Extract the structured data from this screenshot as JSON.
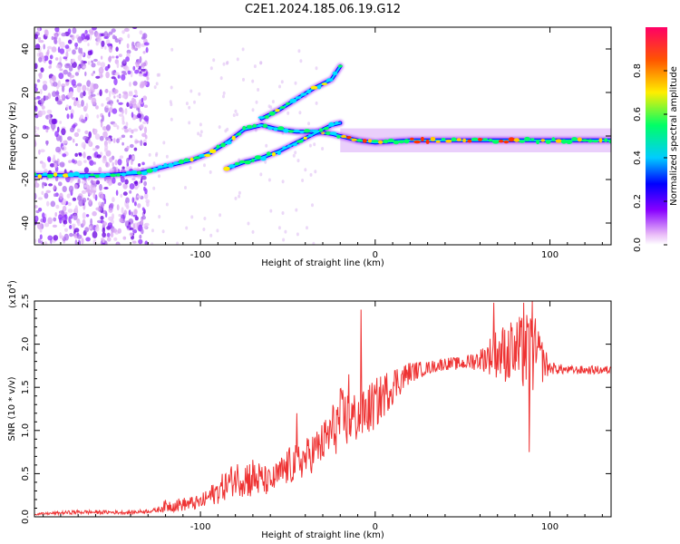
{
  "page": {
    "title": "C2E1.2024.185.06.19.G12"
  },
  "chart_data": [
    {
      "type": "heatmap",
      "xlabel": "Height of straight line (km)",
      "ylabel": "Frequency (Hz)",
      "xlim": [
        -195,
        135
      ],
      "ylim": [
        -50,
        50
      ],
      "xticks": [
        -100,
        0,
        100
      ],
      "yticks": [
        -40,
        -20,
        0,
        20,
        40
      ],
      "colorbar": {
        "label": "Normalized spectral amplitude",
        "range": [
          0,
          1
        ],
        "ticks": [
          0.0,
          0.2,
          0.4,
          0.6,
          0.8
        ],
        "colors": [
          "#ffffff",
          "#e8b8f8",
          "#8800ff",
          "#0000ff",
          "#00ccff",
          "#00ff66",
          "#ffee00",
          "#ff5500",
          "#ff0066"
        ]
      },
      "ridges": [
        {
          "name": "main",
          "points": [
            [
              -195,
              -18
            ],
            [
              -175,
              -18
            ],
            [
              -155,
              -18
            ],
            [
              -135,
              -17
            ],
            [
              -120,
              -14
            ],
            [
              -105,
              -11
            ],
            [
              -95,
              -8
            ],
            [
              -85,
              -3
            ],
            [
              -75,
              3
            ],
            [
              -65,
              5
            ],
            [
              -55,
              3
            ],
            [
              -45,
              2
            ],
            [
              -35,
              2
            ],
            [
              -25,
              1
            ],
            [
              -20,
              0
            ],
            [
              -10,
              -2
            ],
            [
              0,
              -3
            ],
            [
              20,
              -2
            ],
            [
              40,
              -2
            ],
            [
              60,
              -2
            ],
            [
              80,
              -2
            ],
            [
              100,
              -2
            ],
            [
              120,
              -2
            ],
            [
              135,
              -2
            ]
          ]
        },
        {
          "name": "upper",
          "points": [
            [
              -65,
              8
            ],
            [
              -55,
              12
            ],
            [
              -45,
              17
            ],
            [
              -35,
              22
            ],
            [
              -25,
              26
            ],
            [
              -20,
              32
            ]
          ]
        },
        {
          "name": "lower",
          "points": [
            [
              -85,
              -15
            ],
            [
              -75,
              -12
            ],
            [
              -65,
              -10
            ],
            [
              -55,
              -7
            ],
            [
              -45,
              -3
            ],
            [
              -35,
              1
            ],
            [
              -25,
              5
            ],
            [
              -20,
              6
            ]
          ]
        }
      ],
      "noise_region": {
        "xrange": [
          -195,
          -130
        ],
        "yrange": [
          -50,
          50
        ]
      }
    },
    {
      "type": "line",
      "xlabel": "Height of straight line (km)",
      "ylabel": "SNR (10 * v/v)",
      "yscale_label": "(x10",
      "yscale_exp": "4",
      "xlim": [
        -195,
        135
      ],
      "ylim": [
        0,
        2.5
      ],
      "xticks": [
        -100,
        0,
        100
      ],
      "yticks": [
        0.0,
        0.5,
        1.0,
        1.5,
        2.0,
        2.5
      ],
      "color": "#ee3333",
      "envelope": [
        [
          -195,
          0.02,
          0.04
        ],
        [
          -170,
          0.03,
          0.08
        ],
        [
          -140,
          0.03,
          0.07
        ],
        [
          -125,
          0.05,
          0.1
        ],
        [
          -120,
          0.05,
          0.2
        ],
        [
          -100,
          0.08,
          0.25
        ],
        [
          -90,
          0.15,
          0.45
        ],
        [
          -80,
          0.25,
          0.65
        ],
        [
          -70,
          0.2,
          0.7
        ],
        [
          -60,
          0.25,
          0.55
        ],
        [
          -50,
          0.35,
          0.8
        ],
        [
          -40,
          0.45,
          0.9
        ],
        [
          -30,
          0.6,
          1.1
        ],
        [
          -20,
          0.75,
          1.5
        ],
        [
          -10,
          0.85,
          1.45
        ],
        [
          0,
          1.0,
          1.6
        ],
        [
          10,
          1.3,
          1.75
        ],
        [
          20,
          1.55,
          1.8
        ],
        [
          30,
          1.65,
          1.8
        ],
        [
          40,
          1.7,
          1.85
        ],
        [
          50,
          1.7,
          1.85
        ],
        [
          60,
          1.7,
          1.95
        ],
        [
          70,
          1.6,
          2.2
        ],
        [
          80,
          1.5,
          2.3
        ],
        [
          90,
          1.4,
          2.4
        ],
        [
          100,
          1.65,
          1.8
        ],
        [
          110,
          1.65,
          1.75
        ],
        [
          120,
          1.65,
          1.75
        ],
        [
          135,
          1.65,
          1.75
        ]
      ],
      "spikes": [
        [
          -8,
          2.4
        ],
        [
          -15,
          1.65
        ],
        [
          -45,
          1.2
        ],
        [
          68,
          2.48
        ],
        [
          78,
          2.15
        ],
        [
          85,
          2.48
        ],
        [
          90,
          2.5
        ],
        [
          88,
          0.75
        ],
        [
          95,
          1.95
        ],
        [
          55,
          1.88
        ]
      ]
    }
  ]
}
